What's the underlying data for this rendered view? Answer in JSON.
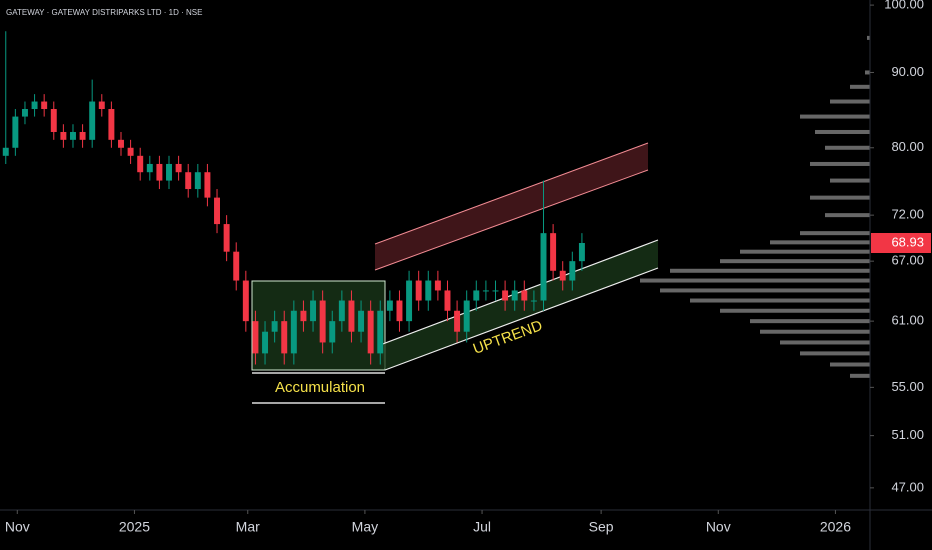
{
  "chart_data": {
    "type": "candlestick",
    "title": "GATEWAY · GATEWAY DISTRIPARKS LTD · 1D · NSE",
    "annotations": [
      "Accumulation",
      "UPTREND"
    ],
    "x": [
      3,
      8,
      13,
      18,
      23,
      28,
      33,
      38,
      43,
      48,
      53,
      58,
      63,
      68,
      73,
      78,
      83,
      88,
      93,
      98,
      103,
      108,
      113,
      118,
      123,
      128,
      133,
      138,
      143,
      148,
      153,
      158,
      163,
      168,
      173,
      178,
      183,
      188,
      193,
      198,
      203,
      208,
      213,
      218,
      223,
      228,
      233,
      238,
      243,
      248,
      253,
      258,
      263,
      268,
      273,
      278,
      283,
      288,
      293,
      298,
      303
    ],
    "open": [
      79,
      80,
      84,
      85,
      86,
      85,
      82,
      81,
      82,
      81,
      86,
      85,
      81,
      80,
      79,
      77,
      78,
      76,
      78,
      77,
      75,
      77,
      74,
      71,
      68,
      65,
      61,
      58,
      60,
      61,
      58,
      62,
      61,
      63,
      59,
      61,
      63,
      60,
      62,
      58,
      62,
      63,
      61,
      65,
      63,
      65,
      64,
      62,
      60,
      63,
      64,
      64,
      64,
      63,
      64,
      63,
      63,
      70,
      66,
      65,
      67
    ],
    "high": [
      96,
      85,
      86,
      87,
      87,
      86,
      83,
      83,
      83,
      89,
      87,
      86,
      82,
      81,
      80,
      79,
      79,
      79,
      79,
      78,
      78,
      78,
      75,
      72,
      69,
      66,
      62,
      61,
      62,
      62,
      63,
      63,
      64,
      64,
      62,
      64,
      64,
      63,
      63,
      63,
      64,
      64,
      66,
      66,
      66,
      66,
      65,
      63,
      64,
      65,
      65,
      65,
      65,
      65,
      65,
      64,
      76,
      71,
      67,
      68,
      70
    ],
    "low": [
      78,
      79,
      83,
      84,
      84,
      81,
      80,
      80,
      80,
      80,
      84,
      80,
      79,
      78,
      76,
      76,
      75,
      75,
      76,
      74,
      74,
      73,
      70,
      67,
      64,
      60,
      57,
      57,
      59,
      57,
      57,
      60,
      60,
      58,
      58,
      60,
      59,
      59,
      57,
      57,
      61,
      60,
      60,
      62,
      62,
      63,
      61,
      59,
      59,
      62,
      63,
      63,
      62,
      62,
      62,
      62,
      62,
      65,
      64,
      64,
      66
    ],
    "close": [
      80,
      84,
      85,
      86,
      85,
      82,
      81,
      82,
      81,
      86,
      85,
      81,
      80,
      79,
      77,
      78,
      76,
      78,
      77,
      75,
      77,
      74,
      71,
      68,
      65,
      61,
      58,
      60,
      61,
      58,
      62,
      61,
      63,
      59,
      61,
      63,
      60,
      62,
      58,
      62,
      63,
      61,
      65,
      63,
      65,
      64,
      62,
      60,
      63,
      64,
      64,
      64,
      63,
      64,
      63,
      63,
      70,
      66,
      65,
      67,
      68.93
    ],
    "up_color": "#089981",
    "down_color": "#f23645",
    "xlim": [
      0,
      453
    ],
    "xticks": [
      {
        "value": 9,
        "label": "Nov"
      },
      {
        "value": 70,
        "label": "2025"
      },
      {
        "value": 129,
        "label": "Mar"
      },
      {
        "value": 190,
        "label": "May"
      },
      {
        "value": 251,
        "label": "Jul"
      },
      {
        "value": 313,
        "label": "Sep"
      },
      {
        "value": 374,
        "label": "Nov"
      },
      {
        "value": 435,
        "label": "2026"
      }
    ],
    "ylim": [
      45.4,
      100.8
    ],
    "log_scale": true,
    "yticks": [
      {
        "value": 100,
        "label": "100.00"
      },
      {
        "value": 90,
        "label": "90.00"
      },
      {
        "value": 80,
        "label": "80.00"
      },
      {
        "value": 72,
        "label": "72.00"
      },
      {
        "value": 67,
        "label": "67.00"
      },
      {
        "value": 61,
        "label": "61.00"
      },
      {
        "value": 55,
        "label": "55.00"
      },
      {
        "value": 51,
        "label": "51.00"
      },
      {
        "value": 47,
        "label": "47.00"
      }
    ],
    "profile": {
      "prices": [
        95,
        90,
        88,
        86,
        84,
        82,
        80,
        78,
        76,
        74,
        72,
        70,
        69,
        68,
        67,
        66,
        65,
        64,
        63,
        62,
        61,
        60,
        59,
        58,
        57,
        56
      ],
      "values": [
        3,
        5,
        20,
        40,
        70,
        55,
        45,
        60,
        40,
        60,
        45,
        70,
        100,
        130,
        150,
        200,
        230,
        210,
        180,
        150,
        120,
        110,
        90,
        70,
        40,
        20
      ]
    }
  }
}
